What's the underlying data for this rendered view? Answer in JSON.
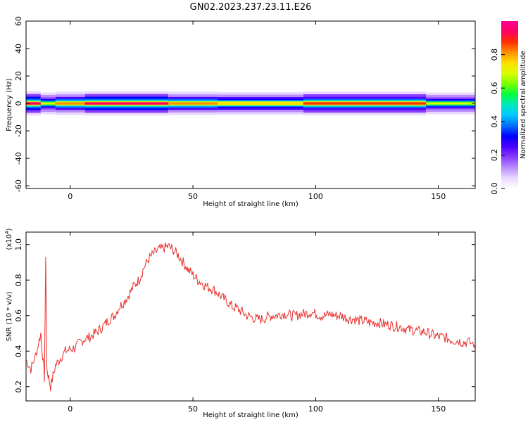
{
  "figure": {
    "title": "GN02.2023.237.23.11.E26"
  },
  "colors": {
    "line": "#e8312e",
    "axis": "#000000",
    "colormap": [
      "#ffffff",
      "#e9d8ff",
      "#b98cff",
      "#8a3cff",
      "#4b00ff",
      "#0000ff",
      "#0070ff",
      "#00c8ff",
      "#00e8c0",
      "#00ff40",
      "#7cff00",
      "#d8ff00",
      "#ffe000",
      "#ff9000",
      "#ff3000",
      "#ff0060",
      "#ff0090"
    ]
  },
  "chart_data": [
    {
      "id": "spectrogram",
      "type": "heatmap",
      "title": "",
      "xlabel": "Height of straight line (km)",
      "ylabel": "Frequency (Hz)",
      "xlim": [
        -18,
        165
      ],
      "ylim": [
        -62,
        60
      ],
      "xticks": [
        0,
        50,
        100,
        150
      ],
      "yticks": [
        -60,
        -40,
        -20,
        0,
        20,
        40,
        60
      ],
      "grid": false,
      "band": {
        "center_hz": 0,
        "segments": [
          {
            "x0": -18,
            "x1": -12,
            "intensity": 0.95
          },
          {
            "x0": -12,
            "x1": -6,
            "intensity": 0.7
          },
          {
            "x0": -6,
            "x1": 6,
            "intensity": 0.85
          },
          {
            "x0": 6,
            "x1": 40,
            "intensity": 0.95
          },
          {
            "x0": 40,
            "x1": 60,
            "intensity": 0.85
          },
          {
            "x0": 60,
            "x1": 95,
            "intensity": 0.8
          },
          {
            "x0": 95,
            "x1": 145,
            "intensity": 0.9
          },
          {
            "x0": 145,
            "x1": 165,
            "intensity": 0.7
          }
        ]
      },
      "colorbar": {
        "label": "Normalized spectral amplitude",
        "ticks": [
          "0.0",
          "0.2",
          "0.4",
          "0.6",
          "0.8"
        ],
        "range": [
          0,
          1
        ]
      }
    },
    {
      "id": "snr",
      "type": "line",
      "title": "",
      "xlabel": "Height of straight line (km)",
      "ylabel": "SNR (10 * v/v)",
      "y_multiplier": "(x10",
      "y_multiplier_exp": "4",
      "xlim": [
        -18,
        165
      ],
      "ylim": [
        0.12,
        1.07
      ],
      "xticks": [
        0,
        50,
        100,
        150
      ],
      "yticks": [
        0.2,
        0.4,
        0.6,
        0.8,
        1.0
      ],
      "grid": false,
      "series": [
        {
          "x": [
            -18,
            -16,
            -14,
            -12,
            -10.5,
            -10,
            -9.5,
            -8,
            -6,
            -4,
            -2,
            0,
            2,
            4,
            6,
            8,
            10,
            12,
            14,
            16,
            18,
            20,
            22,
            24,
            26,
            28,
            30,
            32,
            34,
            36,
            38,
            40,
            42,
            44,
            46,
            48,
            50,
            52,
            54,
            56,
            58,
            60,
            62,
            64,
            66,
            68,
            70,
            72,
            74,
            76,
            78,
            80,
            82,
            84,
            86,
            88,
            90,
            92,
            94,
            96,
            98,
            100,
            102,
            104,
            106,
            108,
            110,
            112,
            114,
            116,
            118,
            120,
            122,
            124,
            126,
            128,
            130,
            132,
            134,
            136,
            138,
            140,
            142,
            144,
            146,
            148,
            150,
            152,
            154,
            156,
            158,
            160,
            162,
            165
          ],
          "y": [
            0.35,
            0.3,
            0.38,
            0.5,
            0.25,
            0.92,
            0.3,
            0.2,
            0.32,
            0.36,
            0.4,
            0.41,
            0.42,
            0.45,
            0.47,
            0.48,
            0.5,
            0.52,
            0.55,
            0.58,
            0.6,
            0.65,
            0.68,
            0.72,
            0.77,
            0.8,
            0.87,
            0.92,
            0.95,
            0.97,
            0.98,
            0.99,
            0.97,
            0.94,
            0.9,
            0.86,
            0.83,
            0.8,
            0.78,
            0.76,
            0.75,
            0.73,
            0.7,
            0.68,
            0.65,
            0.64,
            0.62,
            0.6,
            0.59,
            0.58,
            0.58,
            0.59,
            0.6,
            0.6,
            0.61,
            0.61,
            0.6,
            0.6,
            0.61,
            0.61,
            0.62,
            0.61,
            0.6,
            0.6,
            0.61,
            0.6,
            0.6,
            0.59,
            0.58,
            0.58,
            0.57,
            0.57,
            0.56,
            0.56,
            0.56,
            0.55,
            0.55,
            0.54,
            0.54,
            0.53,
            0.52,
            0.52,
            0.51,
            0.51,
            0.5,
            0.49,
            0.48,
            0.48,
            0.47,
            0.46,
            0.46,
            0.45,
            0.45,
            0.44
          ]
        }
      ]
    }
  ]
}
